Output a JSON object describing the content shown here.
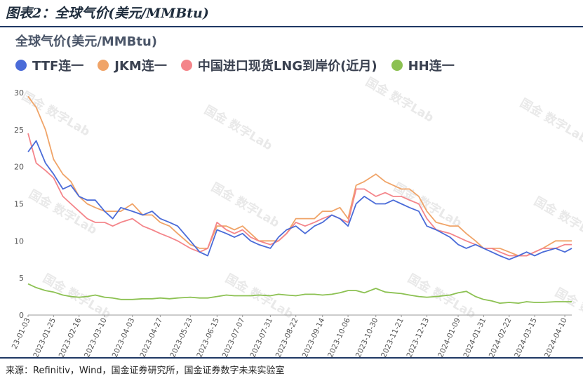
{
  "figure_title": "图表2：全球气价(美元/MMBtu)",
  "source_note": "来源：Refinitiv，Wind，国金证券研究所，国金证券数字未来实验室",
  "watermark": "国金 数字Lab",
  "chart_data": {
    "type": "line",
    "title": "全球气价(美元/MMBtu)",
    "xlabel": "",
    "ylabel": "",
    "ylim": [
      0,
      30
    ],
    "yticks": [
      0,
      5,
      10,
      15,
      20,
      25,
      30
    ],
    "grid": false,
    "legend_position": "top-left",
    "x_ticks": [
      "2023-01-03",
      "2023-01-25",
      "2023-02-16",
      "2023-03-10",
      "2023-04-03",
      "2023-04-27",
      "2023-05-23",
      "2023-06-15",
      "2023-07-07",
      "2023-07-31",
      "2023-08-22",
      "2023-09-14",
      "2023-10-06",
      "2023-10-30",
      "2023-11-21",
      "2023-12-13",
      "2024-01-09",
      "2024-01-31",
      "2024-02-22",
      "2024-03-15",
      "2024-04-10"
    ],
    "x_tick_first_visible": "23-01-03",
    "series": [
      {
        "name": "TTF连一",
        "color": "#4a6bd8",
        "x": [
          "2023-01-03",
          "2023-01-10",
          "2023-01-18",
          "2023-01-25",
          "2023-02-02",
          "2023-02-09",
          "2023-02-16",
          "2023-02-23",
          "2023-03-02",
          "2023-03-10",
          "2023-03-17",
          "2023-03-24",
          "2023-04-03",
          "2023-04-12",
          "2023-04-20",
          "2023-04-27",
          "2023-05-05",
          "2023-05-12",
          "2023-05-23",
          "2023-05-31",
          "2023-06-07",
          "2023-06-15",
          "2023-06-23",
          "2023-06-30",
          "2023-07-07",
          "2023-07-14",
          "2023-07-21",
          "2023-07-31",
          "2023-08-07",
          "2023-08-14",
          "2023-08-22",
          "2023-08-30",
          "2023-09-07",
          "2023-09-14",
          "2023-09-22",
          "2023-09-29",
          "2023-10-06",
          "2023-10-13",
          "2023-10-20",
          "2023-10-30",
          "2023-11-07",
          "2023-11-14",
          "2023-11-21",
          "2023-11-28",
          "2023-12-06",
          "2023-12-13",
          "2023-12-21",
          "2024-01-02",
          "2024-01-09",
          "2024-01-16",
          "2024-01-24",
          "2024-01-31",
          "2024-02-07",
          "2024-02-14",
          "2024-02-22",
          "2024-03-01",
          "2024-03-08",
          "2024-03-15",
          "2024-03-22",
          "2024-04-02",
          "2024-04-10",
          "2024-04-16"
        ],
        "values": [
          22.0,
          23.5,
          20.5,
          19.0,
          17.0,
          17.5,
          16.0,
          15.5,
          15.5,
          14.0,
          13.0,
          14.5,
          14.0,
          13.5,
          14.0,
          13.0,
          12.5,
          12.0,
          10.0,
          8.5,
          8.0,
          11.5,
          11.0,
          10.5,
          11.0,
          10.0,
          9.5,
          9.0,
          10.5,
          11.5,
          12.0,
          11.0,
          12.0,
          12.5,
          13.5,
          13.0,
          12.0,
          15.0,
          16.0,
          15.0,
          15.0,
          15.5,
          15.0,
          14.5,
          14.0,
          12.0,
          11.5,
          10.5,
          9.5,
          9.0,
          9.5,
          9.0,
          8.5,
          8.0,
          7.5,
          8.0,
          8.5,
          8.0,
          8.5,
          9.0,
          8.5,
          9.0
        ]
      },
      {
        "name": "JKM连一",
        "color": "#f0a468",
        "x": [
          "2023-01-03",
          "2023-01-10",
          "2023-01-18",
          "2023-01-25",
          "2023-02-02",
          "2023-02-09",
          "2023-02-16",
          "2023-02-23",
          "2023-03-02",
          "2023-03-10",
          "2023-03-17",
          "2023-03-24",
          "2023-04-03",
          "2023-04-12",
          "2023-04-20",
          "2023-04-27",
          "2023-05-05",
          "2023-05-12",
          "2023-05-23",
          "2023-05-31",
          "2023-06-07",
          "2023-06-15",
          "2023-06-23",
          "2023-06-30",
          "2023-07-07",
          "2023-07-14",
          "2023-07-21",
          "2023-07-31",
          "2023-08-07",
          "2023-08-14",
          "2023-08-22",
          "2023-08-30",
          "2023-09-07",
          "2023-09-14",
          "2023-09-22",
          "2023-09-29",
          "2023-10-06",
          "2023-10-13",
          "2023-10-20",
          "2023-10-30",
          "2023-11-07",
          "2023-11-14",
          "2023-11-21",
          "2023-11-28",
          "2023-12-06",
          "2023-12-13",
          "2023-12-21",
          "2024-01-02",
          "2024-01-09",
          "2024-01-16",
          "2024-01-24",
          "2024-01-31",
          "2024-02-07",
          "2024-02-14",
          "2024-02-22",
          "2024-03-01",
          "2024-03-08",
          "2024-03-15",
          "2024-03-22",
          "2024-04-02",
          "2024-04-10",
          "2024-04-16"
        ],
        "values": [
          29.5,
          28.0,
          25.0,
          21.0,
          19.0,
          18.0,
          16.0,
          15.0,
          14.5,
          14.0,
          14.0,
          14.0,
          15.0,
          13.5,
          13.5,
          12.5,
          12.0,
          11.0,
          9.5,
          9.0,
          9.0,
          12.0,
          12.0,
          11.5,
          12.0,
          11.0,
          10.0,
          10.0,
          10.0,
          11.0,
          13.0,
          13.0,
          13.0,
          14.0,
          14.0,
          14.5,
          13.0,
          17.5,
          18.0,
          19.0,
          18.0,
          17.5,
          17.0,
          17.0,
          16.0,
          14.0,
          12.5,
          12.0,
          12.0,
          11.0,
          10.0,
          9.0,
          9.0,
          9.0,
          8.5,
          8.0,
          8.0,
          8.5,
          9.0,
          10.0,
          10.0,
          10.0
        ]
      },
      {
        "name": "中国进口现货LNG到岸价(近月)",
        "color": "#f4858a",
        "x": [
          "2023-01-03",
          "2023-01-10",
          "2023-01-18",
          "2023-01-25",
          "2023-02-02",
          "2023-02-09",
          "2023-02-16",
          "2023-02-23",
          "2023-03-02",
          "2023-03-10",
          "2023-03-17",
          "2023-03-24",
          "2023-04-03",
          "2023-04-12",
          "2023-04-20",
          "2023-04-27",
          "2023-05-05",
          "2023-05-12",
          "2023-05-23",
          "2023-05-31",
          "2023-06-07",
          "2023-06-15",
          "2023-06-23",
          "2023-06-30",
          "2023-07-07",
          "2023-07-14",
          "2023-07-21",
          "2023-07-31",
          "2023-08-07",
          "2023-08-14",
          "2023-08-22",
          "2023-08-30",
          "2023-09-07",
          "2023-09-14",
          "2023-09-22",
          "2023-09-29",
          "2023-10-06",
          "2023-10-13",
          "2023-10-20",
          "2023-10-30",
          "2023-11-07",
          "2023-11-14",
          "2023-11-21",
          "2023-11-28",
          "2023-12-06",
          "2023-12-13",
          "2023-12-21",
          "2024-01-02",
          "2024-01-09",
          "2024-01-16",
          "2024-01-24",
          "2024-01-31",
          "2024-02-07",
          "2024-02-14",
          "2024-02-22",
          "2024-03-01",
          "2024-03-08",
          "2024-03-15",
          "2024-03-22",
          "2024-04-02",
          "2024-04-10",
          "2024-04-16"
        ],
        "values": [
          24.5,
          20.5,
          19.5,
          18.5,
          16.0,
          15.0,
          14.0,
          13.0,
          12.5,
          12.5,
          12.0,
          12.5,
          13.0,
          12.0,
          11.5,
          11.0,
          10.5,
          10.0,
          9.0,
          8.5,
          9.0,
          12.5,
          11.5,
          11.0,
          11.5,
          10.5,
          10.0,
          9.5,
          10.0,
          11.0,
          12.5,
          12.0,
          12.5,
          13.0,
          13.5,
          13.0,
          12.5,
          17.0,
          17.0,
          16.0,
          16.5,
          16.0,
          16.0,
          15.5,
          15.0,
          13.0,
          11.5,
          11.0,
          10.5,
          10.0,
          9.5,
          9.0,
          9.0,
          8.5,
          8.0,
          8.0,
          8.0,
          8.5,
          9.0,
          9.0,
          9.5,
          9.5
        ]
      },
      {
        "name": "HH连一",
        "color": "#8cc152",
        "x": [
          "2023-01-03",
          "2023-01-10",
          "2023-01-18",
          "2023-01-25",
          "2023-02-02",
          "2023-02-09",
          "2023-02-16",
          "2023-02-23",
          "2023-03-02",
          "2023-03-10",
          "2023-03-17",
          "2023-03-24",
          "2023-04-03",
          "2023-04-12",
          "2023-04-20",
          "2023-04-27",
          "2023-05-05",
          "2023-05-12",
          "2023-05-23",
          "2023-05-31",
          "2023-06-07",
          "2023-06-15",
          "2023-06-23",
          "2023-06-30",
          "2023-07-07",
          "2023-07-14",
          "2023-07-21",
          "2023-07-31",
          "2023-08-07",
          "2023-08-14",
          "2023-08-22",
          "2023-08-30",
          "2023-09-07",
          "2023-09-14",
          "2023-09-22",
          "2023-09-29",
          "2023-10-06",
          "2023-10-13",
          "2023-10-20",
          "2023-10-30",
          "2023-11-07",
          "2023-11-14",
          "2023-11-21",
          "2023-11-28",
          "2023-12-06",
          "2023-12-13",
          "2023-12-21",
          "2024-01-02",
          "2024-01-09",
          "2024-01-16",
          "2024-01-24",
          "2024-01-31",
          "2024-02-07",
          "2024-02-14",
          "2024-02-22",
          "2024-03-01",
          "2024-03-08",
          "2024-03-15",
          "2024-03-22",
          "2024-04-02",
          "2024-04-10",
          "2024-04-16"
        ],
        "values": [
          4.2,
          3.7,
          3.3,
          3.1,
          2.7,
          2.5,
          2.4,
          2.5,
          2.7,
          2.4,
          2.3,
          2.1,
          2.1,
          2.2,
          2.2,
          2.3,
          2.2,
          2.3,
          2.4,
          2.3,
          2.3,
          2.5,
          2.7,
          2.6,
          2.6,
          2.6,
          2.7,
          2.6,
          2.8,
          2.7,
          2.6,
          2.8,
          2.8,
          2.7,
          2.8,
          3.0,
          3.3,
          3.3,
          3.0,
          3.6,
          3.1,
          3.0,
          2.9,
          2.7,
          2.5,
          2.4,
          2.5,
          2.7,
          3.0,
          3.2,
          2.5,
          2.1,
          1.9,
          1.6,
          1.7,
          1.6,
          1.8,
          1.7,
          1.7,
          1.8,
          1.8,
          1.8
        ]
      }
    ]
  }
}
